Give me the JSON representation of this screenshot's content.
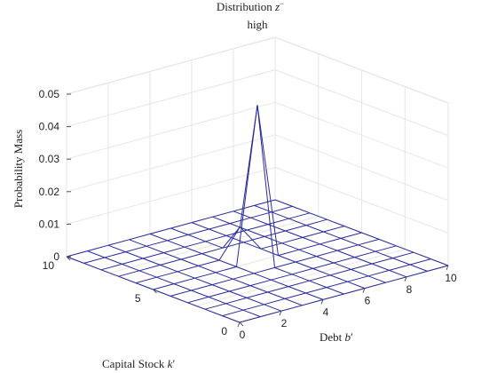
{
  "chart_data": {
    "type": "mesh3d",
    "title_line1_prefix": "Distribution ",
    "title_symbol": "z",
    "title_superscript": "−",
    "title_line2": "high",
    "xlabel_prefix": "Debt ",
    "xlabel_symbol": "b",
    "xlabel_prime": "′",
    "ylabel_prefix": "Capital Stock ",
    "ylabel_symbol": "k",
    "ylabel_prime": "′",
    "zlabel": "Probability Mass",
    "x_ticks": [
      "0",
      "2",
      "4",
      "6",
      "8",
      "10"
    ],
    "y_ticks": [
      "0",
      "5",
      "10"
    ],
    "z_ticks": [
      "0",
      "0.01",
      "0.02",
      "0.03",
      "0.04",
      "0.05"
    ],
    "xlim": [
      0,
      10
    ],
    "ylim": [
      0,
      10
    ],
    "zlim": [
      0,
      0.05
    ],
    "grid": true,
    "mesh_color": "#2b2b9e",
    "grid_x": [
      0,
      1,
      2,
      3,
      4,
      5,
      6,
      7,
      8,
      9,
      10
    ],
    "grid_y": [
      0,
      1,
      2,
      3,
      4,
      5,
      6,
      7,
      8,
      9,
      10
    ],
    "peaks": [
      {
        "x": 5,
        "y": 5,
        "z": 0.048
      },
      {
        "x": 5,
        "y": 6,
        "z": 0.0085
      }
    ]
  }
}
